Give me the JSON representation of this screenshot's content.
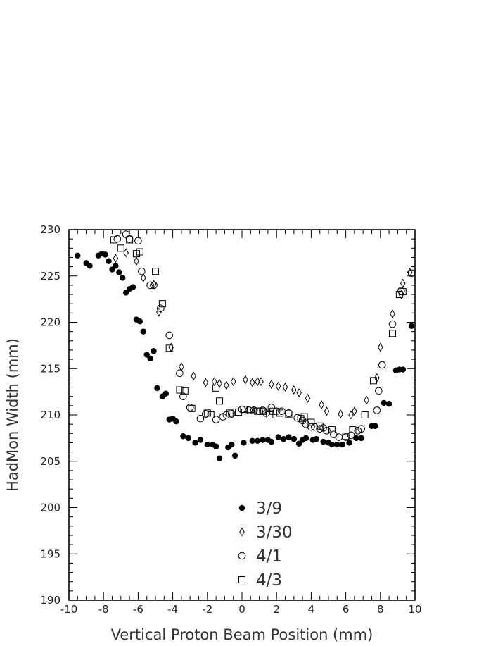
{
  "chart_data": {
    "type": "scatter",
    "title": "",
    "xlabel": "Vertical Proton Beam Position (mm)",
    "ylabel": "HadMon Width (mm)",
    "xlim": [
      -10,
      10
    ],
    "ylim": [
      190,
      230
    ],
    "xticks": [
      -10,
      -8,
      -6,
      -4,
      -2,
      0,
      2,
      4,
      6,
      8,
      10
    ],
    "yticks": [
      190,
      195,
      200,
      205,
      210,
      215,
      220,
      225,
      230
    ],
    "grid": false,
    "legend_position": "bottom-center",
    "series": [
      {
        "name": "3/9",
        "marker": "filled-circle",
        "points": [
          [
            -9.5,
            227.2
          ],
          [
            -9.0,
            226.4
          ],
          [
            -8.8,
            226.1
          ],
          [
            -8.3,
            227.2
          ],
          [
            -8.1,
            227.4
          ],
          [
            -7.9,
            227.3
          ],
          [
            -7.7,
            226.6
          ],
          [
            -7.5,
            225.7
          ],
          [
            -7.3,
            226.1
          ],
          [
            -7.1,
            225.4
          ],
          [
            -6.9,
            224.8
          ],
          [
            -6.7,
            223.2
          ],
          [
            -6.5,
            223.6
          ],
          [
            -6.3,
            223.8
          ],
          [
            -6.1,
            220.3
          ],
          [
            -5.9,
            220.1
          ],
          [
            -5.7,
            219.0
          ],
          [
            -5.5,
            216.5
          ],
          [
            -5.3,
            216.1
          ],
          [
            -5.1,
            216.9
          ],
          [
            -4.9,
            212.9
          ],
          [
            -4.6,
            212.0
          ],
          [
            -4.4,
            212.3
          ],
          [
            -4.2,
            209.5
          ],
          [
            -4.0,
            209.6
          ],
          [
            -3.8,
            209.3
          ],
          [
            -3.4,
            207.7
          ],
          [
            -3.1,
            207.5
          ],
          [
            -2.7,
            207.0
          ],
          [
            -2.4,
            207.3
          ],
          [
            -2.0,
            206.8
          ],
          [
            -1.7,
            206.8
          ],
          [
            -1.5,
            206.6
          ],
          [
            -1.3,
            205.3
          ],
          [
            -0.8,
            206.5
          ],
          [
            -0.6,
            206.8
          ],
          [
            -0.4,
            205.6
          ],
          [
            0.1,
            207.0
          ],
          [
            0.6,
            207.2
          ],
          [
            0.9,
            207.2
          ],
          [
            1.2,
            207.3
          ],
          [
            1.5,
            207.3
          ],
          [
            1.7,
            207.1
          ],
          [
            2.1,
            207.6
          ],
          [
            2.4,
            207.4
          ],
          [
            2.7,
            207.6
          ],
          [
            3.0,
            207.4
          ],
          [
            3.3,
            206.9
          ],
          [
            3.5,
            207.3
          ],
          [
            3.7,
            207.5
          ],
          [
            4.1,
            207.3
          ],
          [
            4.3,
            207.4
          ],
          [
            4.7,
            207.1
          ],
          [
            5.0,
            207.0
          ],
          [
            5.2,
            206.8
          ],
          [
            5.5,
            206.8
          ],
          [
            5.8,
            206.8
          ],
          [
            6.2,
            207.0
          ],
          [
            6.6,
            207.5
          ],
          [
            6.9,
            207.5
          ],
          [
            7.5,
            208.8
          ],
          [
            7.7,
            208.8
          ],
          [
            8.2,
            211.3
          ],
          [
            8.5,
            211.2
          ],
          [
            8.9,
            214.8
          ],
          [
            9.1,
            214.9
          ],
          [
            9.3,
            214.9
          ],
          [
            9.8,
            219.6
          ]
        ]
      },
      {
        "name": "3/30",
        "marker": "open-diamond",
        "points": [
          [
            -7.3,
            226.9
          ],
          [
            -6.7,
            227.5
          ],
          [
            -6.1,
            226.6
          ],
          [
            -5.7,
            224.8
          ],
          [
            -5.1,
            224.1
          ],
          [
            -4.8,
            221.1
          ],
          [
            -4.1,
            217.3
          ],
          [
            -3.5,
            215.2
          ],
          [
            -2.8,
            214.2
          ],
          [
            -2.1,
            213.5
          ],
          [
            -1.6,
            213.6
          ],
          [
            -1.3,
            213.4
          ],
          [
            -0.9,
            213.2
          ],
          [
            -0.5,
            213.6
          ],
          [
            0.2,
            213.8
          ],
          [
            0.6,
            213.5
          ],
          [
            0.9,
            213.6
          ],
          [
            1.1,
            213.6
          ],
          [
            1.7,
            213.3
          ],
          [
            2.1,
            213.1
          ],
          [
            2.5,
            213.0
          ],
          [
            3.0,
            212.7
          ],
          [
            3.3,
            212.4
          ],
          [
            3.8,
            211.8
          ],
          [
            4.6,
            211.1
          ],
          [
            4.9,
            210.4
          ],
          [
            5.7,
            210.1
          ],
          [
            6.3,
            210.0
          ],
          [
            6.5,
            210.4
          ],
          [
            7.2,
            211.6
          ],
          [
            7.8,
            214.0
          ],
          [
            8.0,
            217.3
          ],
          [
            8.7,
            220.9
          ],
          [
            9.2,
            223.0
          ],
          [
            9.3,
            224.2
          ],
          [
            9.7,
            225.4
          ]
        ]
      },
      {
        "name": "4/1",
        "marker": "open-circle",
        "points": [
          [
            -7.2,
            229.0
          ],
          [
            -6.7,
            229.5
          ],
          [
            -6.5,
            229.0
          ],
          [
            -6.0,
            228.8
          ],
          [
            -5.8,
            225.5
          ],
          [
            -5.3,
            224.0
          ],
          [
            -5.1,
            224.0
          ],
          [
            -4.7,
            221.5
          ],
          [
            -4.2,
            218.6
          ],
          [
            -3.6,
            214.5
          ],
          [
            -3.4,
            212.0
          ],
          [
            -3.0,
            210.8
          ],
          [
            -2.4,
            209.6
          ],
          [
            -2.1,
            210.1
          ],
          [
            -1.5,
            209.5
          ],
          [
            -1.1,
            209.8
          ],
          [
            -0.9,
            210.0
          ],
          [
            -0.6,
            210.1
          ],
          [
            0.0,
            210.6
          ],
          [
            0.4,
            210.5
          ],
          [
            0.7,
            210.5
          ],
          [
            1.0,
            210.4
          ],
          [
            1.2,
            210.5
          ],
          [
            1.4,
            210.2
          ],
          [
            1.7,
            210.8
          ],
          [
            2.0,
            210.4
          ],
          [
            2.3,
            210.4
          ],
          [
            2.7,
            210.2
          ],
          [
            3.2,
            209.7
          ],
          [
            3.5,
            209.4
          ],
          [
            3.7,
            209.0
          ],
          [
            4.0,
            208.7
          ],
          [
            4.2,
            208.7
          ],
          [
            4.5,
            208.5
          ],
          [
            4.7,
            208.6
          ],
          [
            4.9,
            208.3
          ],
          [
            5.3,
            207.9
          ],
          [
            5.6,
            207.6
          ],
          [
            6.0,
            207.6
          ],
          [
            6.3,
            207.8
          ],
          [
            6.7,
            208.3
          ],
          [
            6.9,
            208.5
          ],
          [
            7.8,
            210.5
          ],
          [
            7.9,
            212.6
          ],
          [
            8.1,
            215.4
          ],
          [
            8.7,
            219.8
          ],
          [
            9.2,
            223.4
          ],
          [
            9.8,
            225.3
          ]
        ]
      },
      {
        "name": "4/3",
        "marker": "open-square",
        "points": [
          [
            -7.4,
            228.9
          ],
          [
            -7.0,
            228.0
          ],
          [
            -6.5,
            228.9
          ],
          [
            -6.1,
            227.4
          ],
          [
            -5.9,
            227.6
          ],
          [
            -5.0,
            225.5
          ],
          [
            -4.6,
            222.0
          ],
          [
            -4.2,
            217.2
          ],
          [
            -3.6,
            212.7
          ],
          [
            -3.3,
            212.6
          ],
          [
            -2.9,
            210.7
          ],
          [
            -2.0,
            210.2
          ],
          [
            -1.8,
            210.0
          ],
          [
            -1.5,
            212.9
          ],
          [
            -1.3,
            211.5
          ],
          [
            -0.7,
            210.2
          ],
          [
            -0.2,
            210.3
          ],
          [
            0.1,
            210.6
          ],
          [
            0.5,
            210.6
          ],
          [
            0.9,
            210.4
          ],
          [
            1.2,
            210.4
          ],
          [
            1.6,
            210.0
          ],
          [
            1.8,
            210.4
          ],
          [
            2.2,
            210.2
          ],
          [
            2.7,
            210.1
          ],
          [
            3.4,
            209.6
          ],
          [
            3.6,
            209.8
          ],
          [
            4.0,
            209.2
          ],
          [
            4.5,
            208.8
          ],
          [
            5.2,
            208.4
          ],
          [
            6.0,
            207.7
          ],
          [
            6.4,
            208.4
          ],
          [
            7.1,
            210.0
          ],
          [
            7.6,
            213.7
          ],
          [
            8.7,
            218.8
          ],
          [
            9.1,
            223.0
          ],
          [
            9.3,
            223.3
          ]
        ]
      }
    ]
  }
}
